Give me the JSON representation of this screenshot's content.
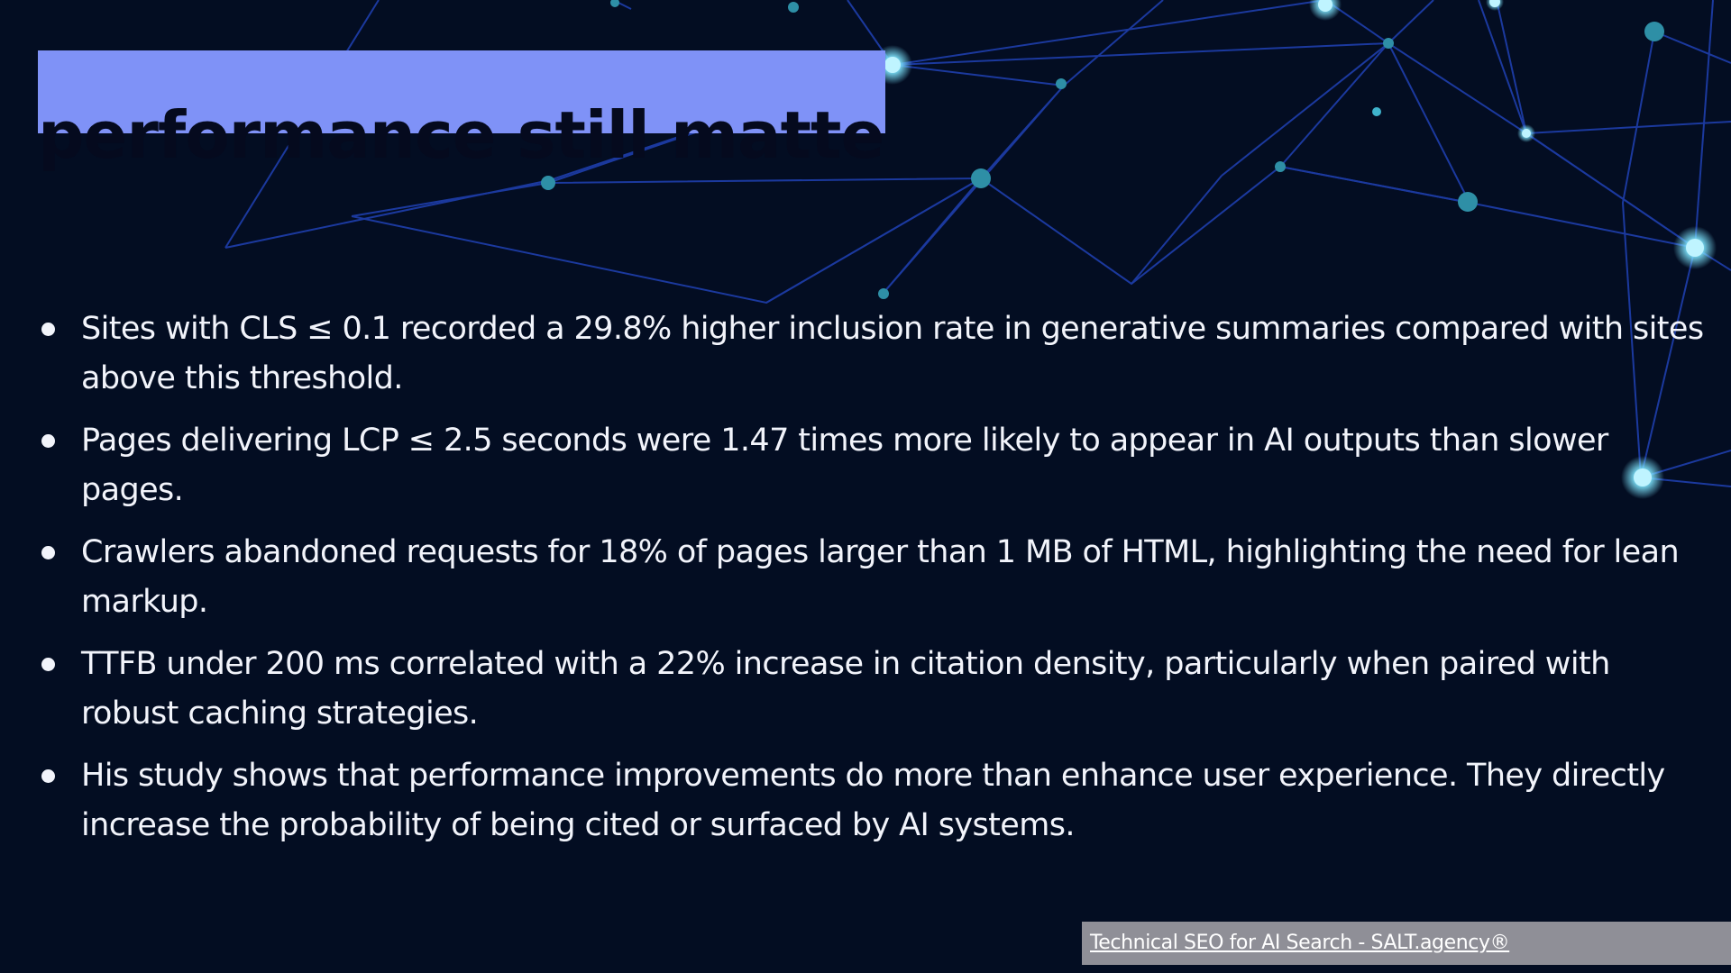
{
  "slide": {
    "title": "performance still matters",
    "bullets": [
      "Sites with CLS ≤ 0.1 recorded a 29.8% higher inclusion rate in generative summaries compared with sites above this threshold.",
      "Pages delivering LCP ≤ 2.5 seconds were 1.47 times more likely to appear in AI outputs than slower pages.",
      "Crawlers abandoned requests for 18% of pages larger than 1 MB of HTML, highlighting the need for lean markup.",
      "TTFB under 200 ms correlated with a 22% increase in citation density, particularly when paired with robust caching strategies.",
      "His study shows that performance improvements do more than enhance user experience. They directly increase the probability of being cited or surfaced by AI systems."
    ],
    "footer_link": "Technical SEO for AI Search - SALT.agency®"
  },
  "colors": {
    "background": "#030d22",
    "title_highlight": "#7f92f7",
    "title_text": "#050a1e",
    "body_text": "#f2f4fb",
    "footer_bg": "#8f8f97",
    "network_line": "#2a56d6",
    "network_node": "#7fe6ff"
  },
  "icons": {
    "background_art": "network-constellation-graphic"
  }
}
